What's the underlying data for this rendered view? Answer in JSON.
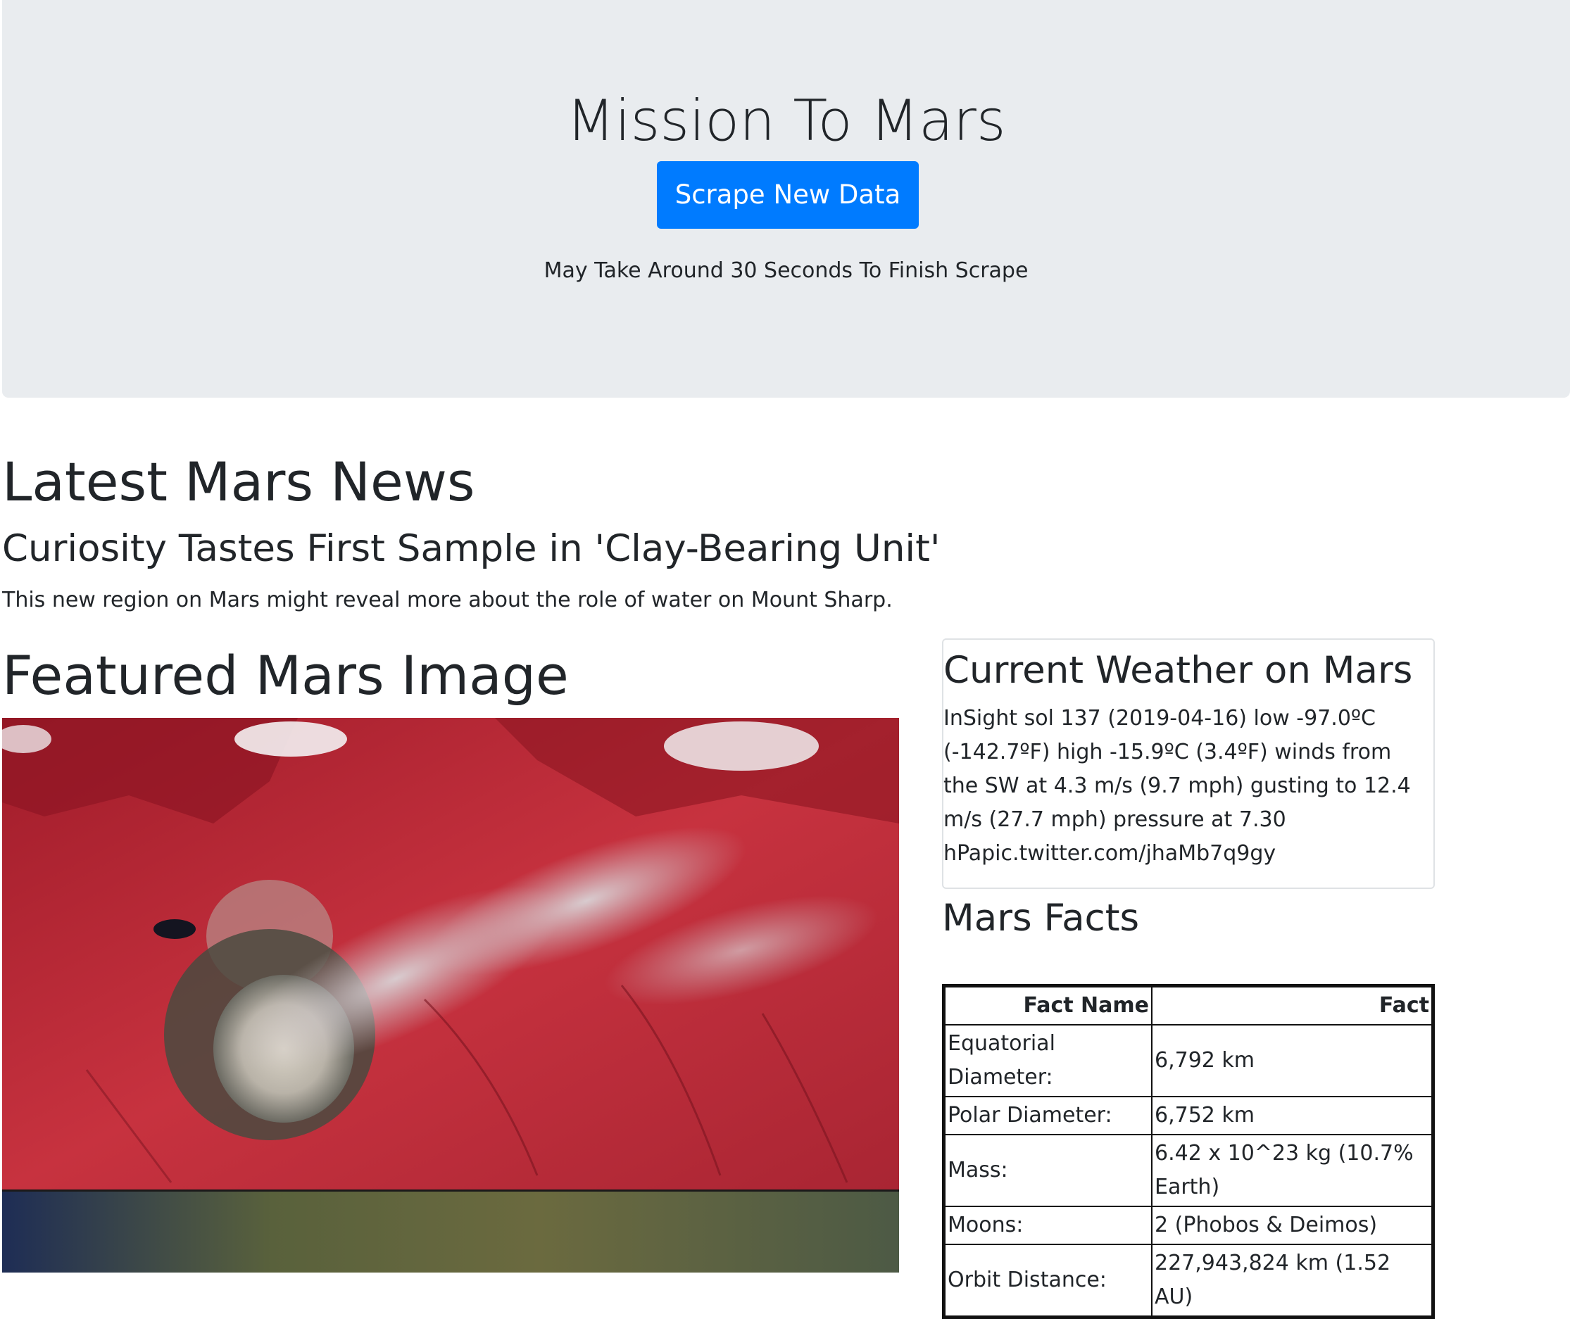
{
  "header": {
    "title": "Mission To Mars",
    "scrape_button_label": "Scrape New Data",
    "note": "May Take Around 30 Seconds To Finish Scrape"
  },
  "news": {
    "heading": "Latest Mars News",
    "title": "Curiosity Tastes First Sample in 'Clay-Bearing Unit'",
    "teaser": "This new region on Mars might reveal more about the role of water on Mount Sharp."
  },
  "featured": {
    "heading": "Featured Mars Image"
  },
  "weather": {
    "heading": "Current Weather on Mars",
    "text": "InSight sol 137 (2019-04-16) low -97.0ºC (-142.7ºF) high -15.9ºC (3.4ºF) winds from the SW at 4.3 m/s (9.7 mph) gusting to 12.4 m/s (27.7 mph) pressure at 7.30 hPapic.twitter.com/jhaMb7q9gy"
  },
  "facts": {
    "heading": "Mars Facts",
    "columns": [
      "Fact Name",
      "Fact"
    ],
    "rows": [
      {
        "name": "Equatorial Diameter:",
        "value": "6,792 km"
      },
      {
        "name": "Polar Diameter:",
        "value": "6,752 km"
      },
      {
        "name": "Mass:",
        "value": "6.42 x 10^23 kg (10.7% Earth)"
      },
      {
        "name": "Moons:",
        "value": "2 (Phobos & Deimos)"
      },
      {
        "name": "Orbit Distance:",
        "value": "227,943,824 km (1.52 AU)"
      }
    ]
  },
  "colors": {
    "jumbotron_bg": "#e9ecef",
    "button": "#007bff",
    "text": "#212529"
  }
}
